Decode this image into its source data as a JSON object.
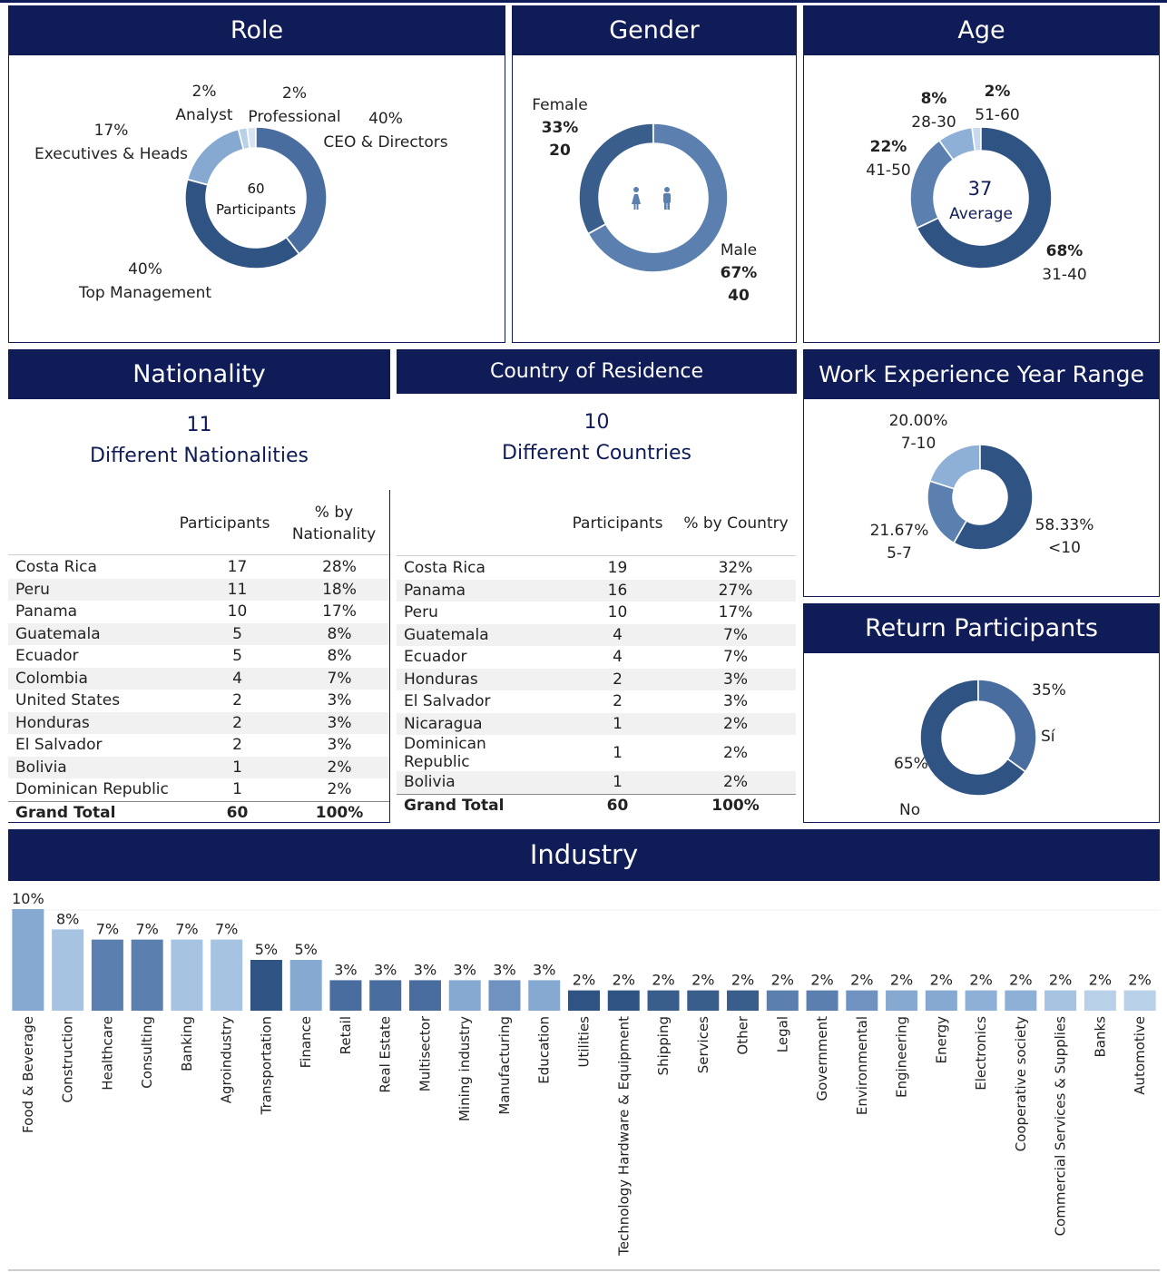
{
  "role": {
    "title": "Role",
    "center_count": "60",
    "center_label": "Participants",
    "segments": [
      {
        "name": "CEO & Directors",
        "pct_label": "40%",
        "value": 40,
        "color": "#4a6d9f"
      },
      {
        "name": "Top Management",
        "pct_label": "40%",
        "value": 40,
        "color": "#2f5383"
      },
      {
        "name": "Executives &  Heads",
        "pct_label": "17%",
        "value": 17,
        "color": "#86a9d1"
      },
      {
        "name": "Analyst",
        "pct_label": "2%",
        "value": 2,
        "color": "#b8d0e8"
      },
      {
        "name": "Professional",
        "pct_label": "2%",
        "value": 2,
        "color": "#d6e4f2"
      }
    ]
  },
  "gender": {
    "title": "Gender",
    "female": {
      "name": "Female",
      "pct": "33%",
      "count": "20",
      "value": 33,
      "color": "#3a5e8c"
    },
    "male": {
      "name": "Male",
      "pct": "67%",
      "count": "40",
      "value": 67,
      "color": "#5b80b0"
    },
    "icon_color": "#5b80b0"
  },
  "age": {
    "title": "Age",
    "center_value": "37",
    "center_label": "Average",
    "segments": [
      {
        "range": "31-40",
        "pct": "68%",
        "value": 68,
        "color": "#2f5383"
      },
      {
        "range": "41-50",
        "pct": "22%",
        "value": 22,
        "color": "#5b80b0"
      },
      {
        "range": "28-30",
        "pct": "8%",
        "value": 8,
        "color": "#8fb0d6"
      },
      {
        "range": "51-60",
        "pct": "2%",
        "value": 2,
        "color": "#c6d9ee"
      }
    ]
  },
  "nationality": {
    "title": "Nationality",
    "count": "11",
    "count_label": "Different Nationalities",
    "col_participants": "Participants",
    "col_pct_line1": "% by",
    "col_pct_line2": "Nationality",
    "rows": [
      {
        "name": "Costa Rica",
        "participants": "17",
        "pct": "28%"
      },
      {
        "name": "Peru",
        "participants": "11",
        "pct": "18%"
      },
      {
        "name": "Panama",
        "participants": "10",
        "pct": "17%"
      },
      {
        "name": "Guatemala",
        "participants": "5",
        "pct": "8%"
      },
      {
        "name": "Ecuador",
        "participants": "5",
        "pct": "8%"
      },
      {
        "name": "Colombia",
        "participants": "4",
        "pct": "7%"
      },
      {
        "name": "United States",
        "participants": "2",
        "pct": "3%"
      },
      {
        "name": "Honduras",
        "participants": "2",
        "pct": "3%"
      },
      {
        "name": "El Salvador",
        "participants": "2",
        "pct": "3%"
      },
      {
        "name": "Bolivia",
        "participants": "1",
        "pct": "2%"
      },
      {
        "name": " Dominican Republic",
        "participants": "1",
        "pct": "2%"
      }
    ],
    "total": {
      "name": "Grand Total",
      "participants": "60",
      "pct": "100%"
    }
  },
  "residence": {
    "title": "Country of Residence",
    "count": "10",
    "count_label": "Different Countries",
    "col_participants": "Participants",
    "col_pct": "% by Country",
    "rows": [
      {
        "name": "Costa Rica",
        "participants": "19",
        "pct": "32%"
      },
      {
        "name": "Panama",
        "participants": "16",
        "pct": "27%"
      },
      {
        "name": "Peru",
        "participants": "10",
        "pct": "17%"
      },
      {
        "name": "Guatemala",
        "participants": "4",
        "pct": "7%"
      },
      {
        "name": "Ecuador",
        "participants": "4",
        "pct": "7%"
      },
      {
        "name": "Honduras",
        "participants": "2",
        "pct": "3%"
      },
      {
        "name": "El Salvador",
        "participants": "2",
        "pct": "3%"
      },
      {
        "name": "Nicaragua",
        "participants": "1",
        "pct": "2%"
      },
      {
        "name": "Dominican Republic",
        "participants": "1",
        "pct": "2%"
      },
      {
        "name": "Bolivia",
        "participants": "1",
        "pct": "2%"
      }
    ],
    "total": {
      "name": "Grand Total",
      "participants": "60",
      "pct": "100%"
    }
  },
  "work_experience": {
    "title": "Work Experience Year Range",
    "segments": [
      {
        "range": "<10",
        "pct": "58.33%",
        "value": 58.33,
        "color": "#2f5383"
      },
      {
        "range": "5-7",
        "pct": "21.67%",
        "value": 21.67,
        "color": "#5b80b0"
      },
      {
        "range": "7-10",
        "pct": "20.00%",
        "value": 20.0,
        "color": "#8fb0d6"
      }
    ]
  },
  "return_participants": {
    "title": "Return Participants",
    "segments": [
      {
        "name": "Sí",
        "pct": "35%",
        "value": 35,
        "color": "#4a6d9f"
      },
      {
        "name": "No",
        "pct": "65%",
        "value": 65,
        "color": "#2f5383"
      }
    ]
  },
  "chart_data": {
    "type": "bar",
    "title": "Industry",
    "xlabel": "",
    "ylabel": "",
    "ylim": [
      0,
      10
    ],
    "categories": [
      "Food & Beverage",
      "Construction",
      "Healthcare",
      "Consulting",
      "Banking",
      "Agroindustry",
      "Transportation",
      "Finance",
      "Retail",
      "Real Estate",
      "Multisector",
      "Mining industry",
      "Manufacturing",
      "Education",
      "Utilities",
      "Technology Hardware & Equipment",
      "Shipping",
      "Services",
      "Other",
      "Legal",
      "Government",
      "Environmental",
      "Engineering",
      "Energy",
      "Electronics",
      "Cooperative society",
      "Commercial Services & Supplies",
      "Banks",
      "Automotive"
    ],
    "values": [
      10,
      8,
      7,
      7,
      7,
      7,
      5,
      5,
      3,
      3,
      3,
      3,
      3,
      3,
      2,
      2,
      2,
      2,
      2,
      2,
      2,
      2,
      2,
      2,
      2,
      2,
      2,
      2,
      2
    ],
    "labels": [
      "10%",
      "8%",
      "7%",
      "7%",
      "7%",
      "7%",
      "5%",
      "5%",
      "3%",
      "3%",
      "3%",
      "3%",
      "3%",
      "3%",
      "2%",
      "2%",
      "2%",
      "2%",
      "2%",
      "2%",
      "2%",
      "2%",
      "2%",
      "2%",
      "2%",
      "2%",
      "2%",
      "2%",
      "2%"
    ],
    "colors": [
      "#86a9d1",
      "#a6c3e2",
      "#5b80b0",
      "#5b80b0",
      "#a6c3e2",
      "#a6c3e2",
      "#2f5383",
      "#86a9d1",
      "#4a6d9f",
      "#4a6d9f",
      "#4a6d9f",
      "#86a9d1",
      "#6f92c0",
      "#86a9d1",
      "#2f5383",
      "#2f5383",
      "#3a5e8c",
      "#3a5e8c",
      "#3a5e8c",
      "#5b80b0",
      "#5b80b0",
      "#6f92c0",
      "#86a9d1",
      "#86a9d1",
      "#8fb0d6",
      "#8fb0d6",
      "#a6c3e2",
      "#b8d0e8",
      "#b8d0e8"
    ]
  }
}
